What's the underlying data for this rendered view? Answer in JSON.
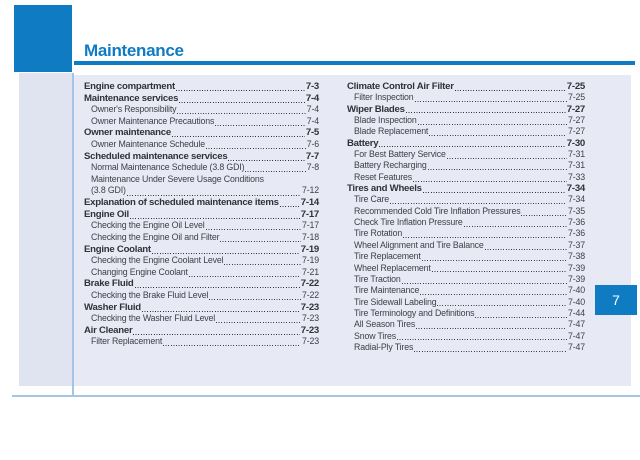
{
  "page": {
    "title": "Maintenance",
    "chapter_tab": "7"
  },
  "colors": {
    "brand_blue": "#0f7bc3",
    "panel_bg": "#e7eaf4",
    "strip_bg": "#dfe4f0",
    "line_blue": "#a3c6e8",
    "text_main": "#2f3237",
    "text_sub": "#3c3f46"
  },
  "toc": {
    "columns": [
      {
        "entries": [
          {
            "label": "Engine compartment",
            "page": "7-3",
            "level": "main"
          },
          {
            "label": "Maintenance services",
            "page": "7-4",
            "level": "main"
          },
          {
            "label": "Owner's Responsibility",
            "page": "7-4",
            "level": "sub"
          },
          {
            "label": "Owner Maintenance Precautions",
            "page": "7-4",
            "level": "sub"
          },
          {
            "label": "Owner maintenance",
            "page": "7-5",
            "level": "main"
          },
          {
            "label": "Owner Maintenance Schedule",
            "page": "7-6",
            "level": "sub"
          },
          {
            "label": "Scheduled maintenance services",
            "page": "7-7",
            "level": "main"
          },
          {
            "label": "Normal Maintenance Schedule (3.8 GDI)",
            "page": "7-8",
            "level": "sub"
          },
          {
            "label": "Maintenance Under Severe Usage Conditions",
            "label2": "(3.8 GDI)",
            "page": "7-12",
            "level": "sub"
          },
          {
            "label": "Explanation of scheduled maintenance items",
            "page": "7-14",
            "level": "main"
          },
          {
            "label": "Engine Oil",
            "page": "7-17",
            "level": "main"
          },
          {
            "label": "Checking the Engine Oil Level",
            "page": "7-17",
            "level": "sub"
          },
          {
            "label": "Checking the Engine Oil and Filter",
            "page": "7-18",
            "level": "sub"
          },
          {
            "label": "Engine Coolant",
            "page": "7-19",
            "level": "main"
          },
          {
            "label": "Checking the Engine Coolant Level",
            "page": "7-19",
            "level": "sub"
          },
          {
            "label": "Changing Engine Coolant",
            "page": "7-21",
            "level": "sub"
          },
          {
            "label": "Brake Fluid",
            "page": "7-22",
            "level": "main"
          },
          {
            "label": "Checking the Brake Fluid Level",
            "page": "7-22",
            "level": "sub"
          },
          {
            "label": "Washer Fluid",
            "page": "7-23",
            "level": "main"
          },
          {
            "label": "Checking the Washer Fluid Level",
            "page": "7-23",
            "level": "sub"
          },
          {
            "label": "Air Cleaner",
            "page": "7-23",
            "level": "main"
          },
          {
            "label": "Filter Replacement",
            "page": "7-23",
            "level": "sub"
          }
        ]
      },
      {
        "entries": [
          {
            "label": "Climate Control Air Filter",
            "page": "7-25",
            "level": "main"
          },
          {
            "label": "Filter Inspection",
            "page": "7-25",
            "level": "sub"
          },
          {
            "label": "Wiper Blades",
            "page": "7-27",
            "level": "main"
          },
          {
            "label": "Blade Inspection",
            "page": "7-27",
            "level": "sub"
          },
          {
            "label": "Blade Replacement",
            "page": "7-27",
            "level": "sub"
          },
          {
            "label": "Battery",
            "page": "7-30",
            "level": "main"
          },
          {
            "label": "For Best Battery Service",
            "page": "7-31",
            "level": "sub"
          },
          {
            "label": "Battery Recharging",
            "page": "7-31",
            "level": "sub"
          },
          {
            "label": "Reset Features",
            "page": "7-33",
            "level": "sub"
          },
          {
            "label": "Tires and Wheels",
            "page": "7-34",
            "level": "main"
          },
          {
            "label": "Tire Care",
            "page": "7-34",
            "level": "sub"
          },
          {
            "label": "Recommended Cold Tire Inflation Pressures",
            "page": "7-35",
            "level": "sub"
          },
          {
            "label": "Check Tire Inflation Pressure",
            "page": "7-36",
            "level": "sub"
          },
          {
            "label": "Tire Rotation",
            "page": "7-36",
            "level": "sub"
          },
          {
            "label": "Wheel Alignment and Tire Balance",
            "page": "7-37",
            "level": "sub"
          },
          {
            "label": "Tire Replacement",
            "page": "7-38",
            "level": "sub"
          },
          {
            "label": "Wheel Replacement",
            "page": "7-39",
            "level": "sub"
          },
          {
            "label": "Tire Traction",
            "page": "7-39",
            "level": "sub"
          },
          {
            "label": "Tire Maintenance",
            "page": "7-40",
            "level": "sub"
          },
          {
            "label": "Tire Sidewall Labeling",
            "page": "7-40",
            "level": "sub"
          },
          {
            "label": "Tire Terminology and Definitions",
            "page": "7-44",
            "level": "sub"
          },
          {
            "label": "All Season Tires",
            "page": "7-47",
            "level": "sub"
          },
          {
            "label": "Snow Tires",
            "page": "7-47",
            "level": "sub"
          },
          {
            "label": "Radial-Ply Tires",
            "page": "7-47",
            "level": "sub"
          }
        ]
      }
    ]
  }
}
